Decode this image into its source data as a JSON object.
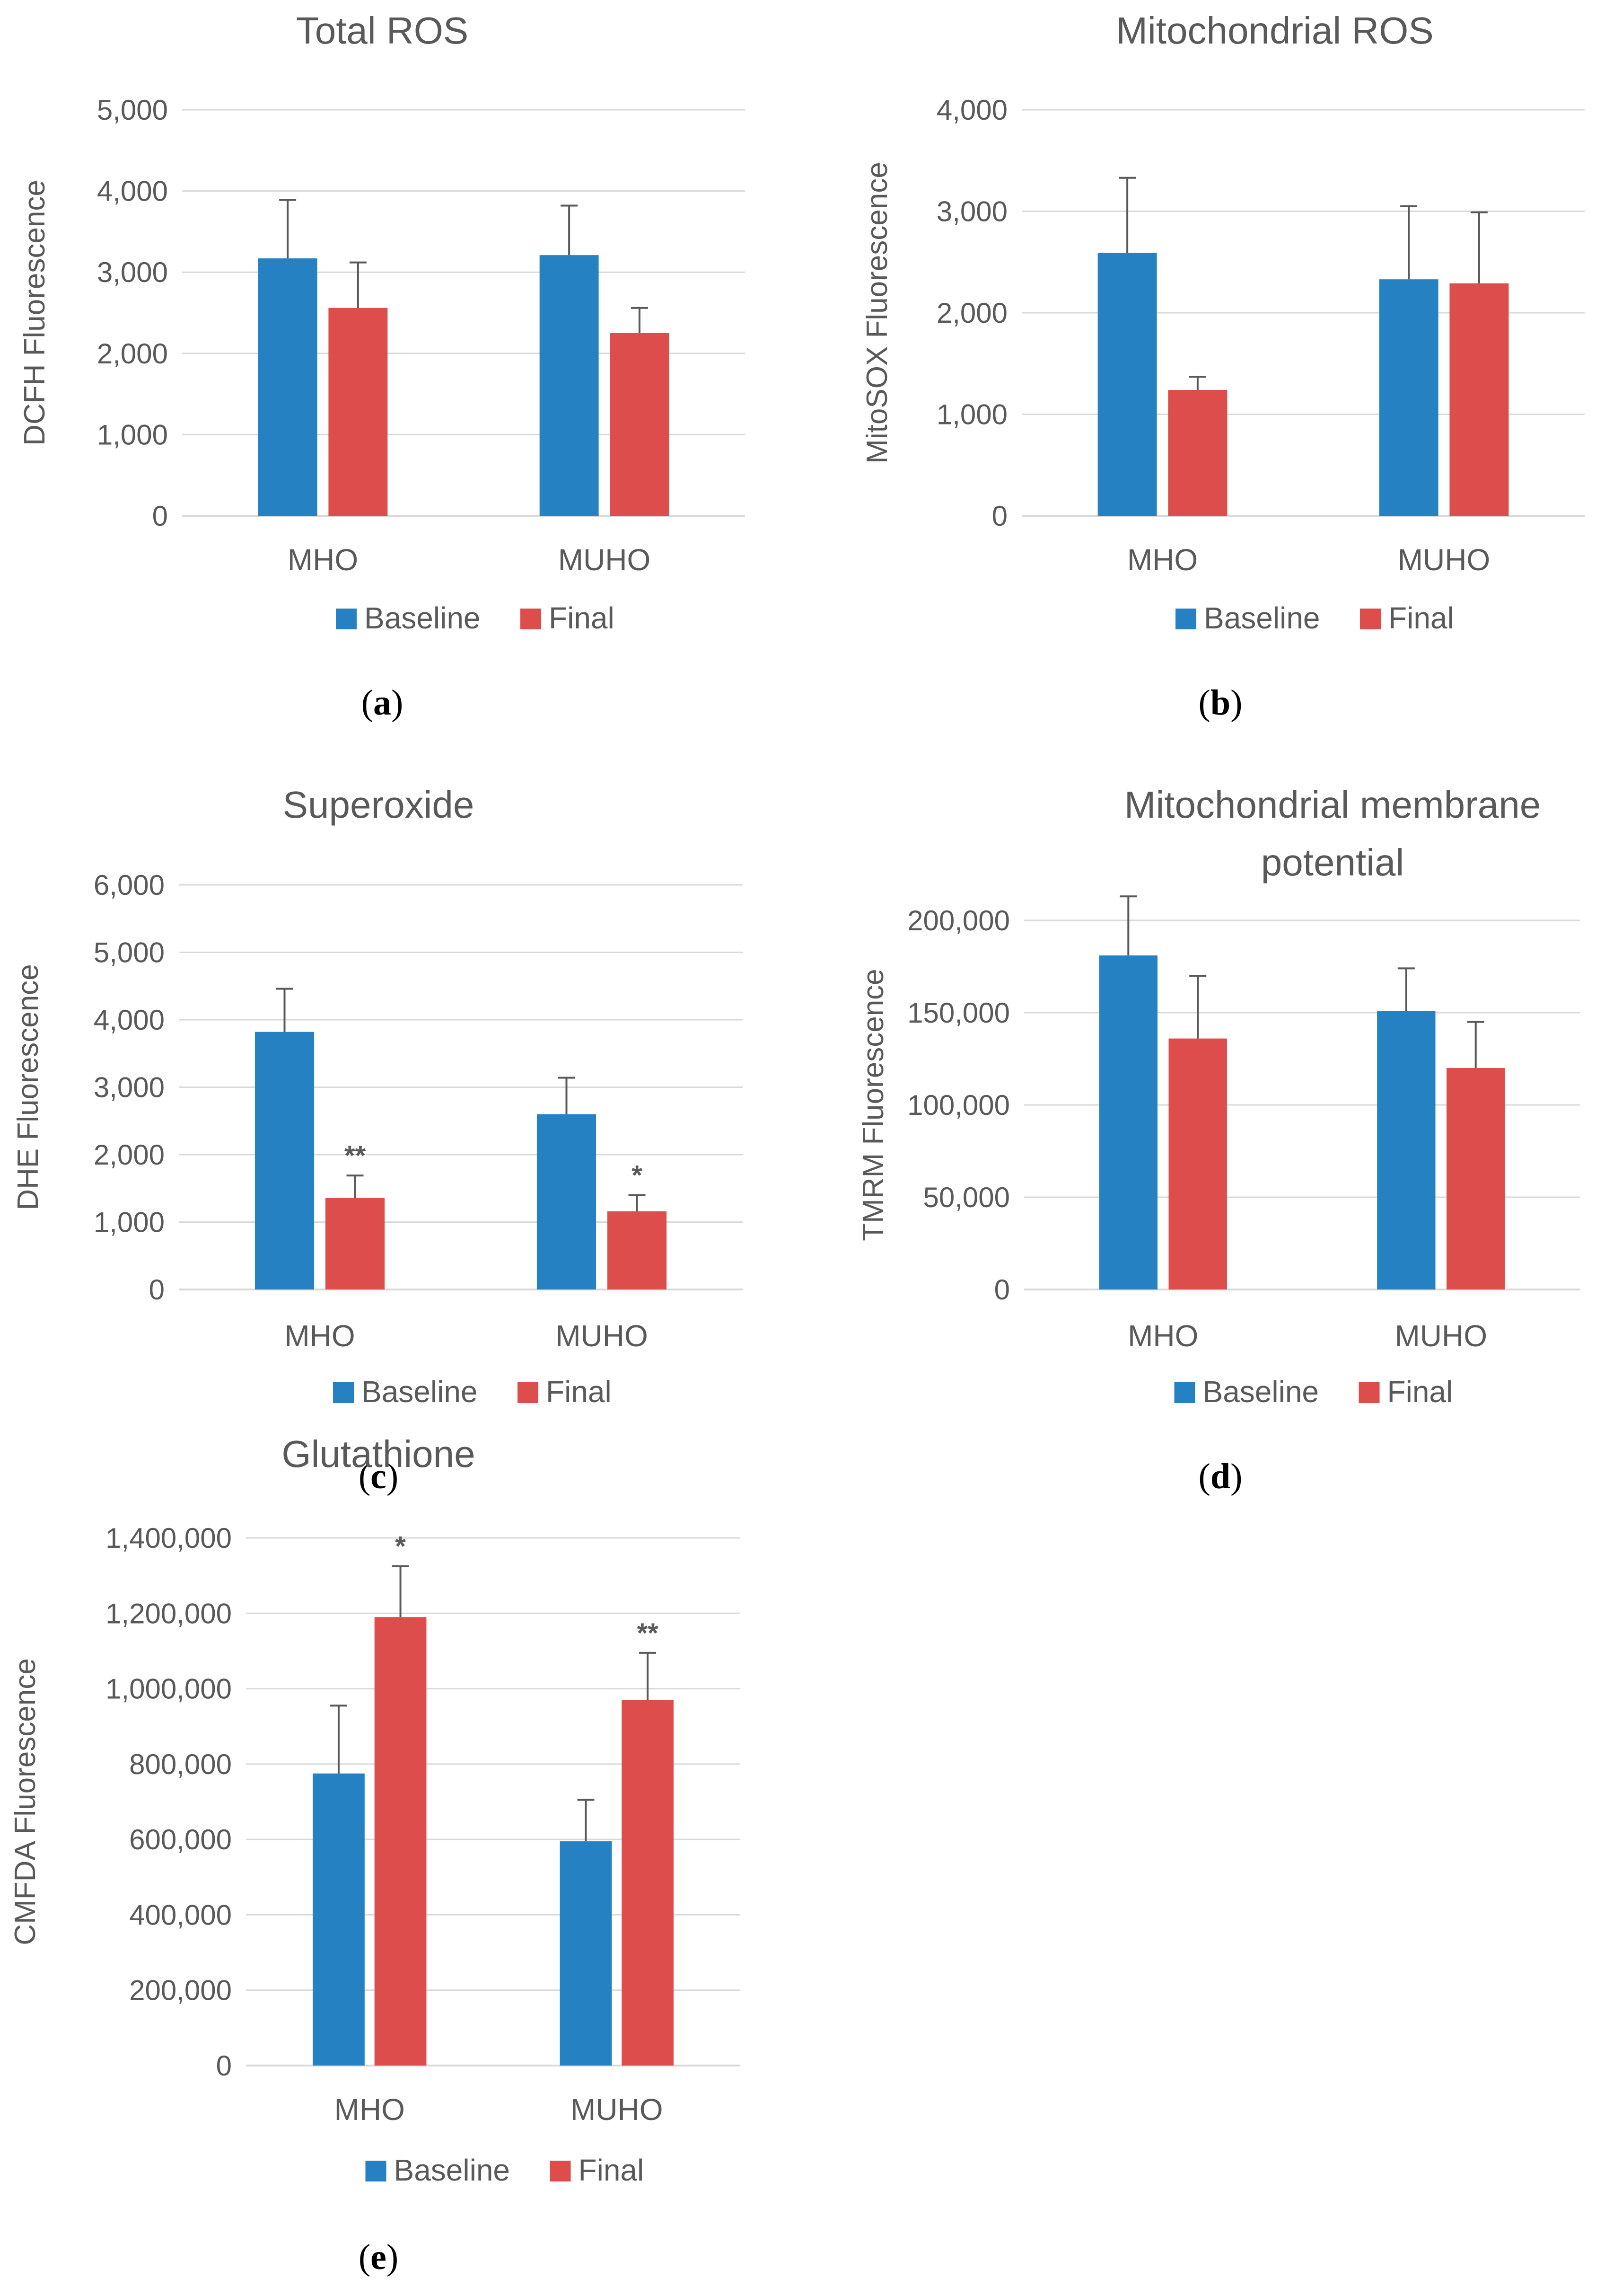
{
  "colors": {
    "baseline": "#2681c3",
    "final": "#dd4d4c"
  },
  "chart_data": [
    {
      "id": "a",
      "type": "bar",
      "title": [
        "Total ROS"
      ],
      "ylabel": "DCFH Fluorescence",
      "xlabel": "",
      "categories": [
        "MHO",
        "MUHO"
      ],
      "ylim": [
        0,
        5000
      ],
      "yticks": [
        0,
        1000,
        2000,
        3000,
        4000,
        5000
      ],
      "ytick_labels": [
        "0",
        "1,000",
        "2,000",
        "3,000",
        "4,000",
        "5,000"
      ],
      "series": [
        {
          "name": "Baseline",
          "values": [
            3170,
            3210
          ],
          "errors": [
            720,
            610
          ],
          "sig": [
            "",
            ""
          ]
        },
        {
          "name": "Final",
          "values": [
            2560,
            2250
          ],
          "errors": [
            560,
            310
          ],
          "sig": [
            "",
            ""
          ]
        }
      ],
      "legend": "bottom",
      "caption": "a"
    },
    {
      "id": "b",
      "type": "bar",
      "title": [
        "Mitochondrial ROS"
      ],
      "ylabel": "MitoSOX Fluorescence",
      "xlabel": "",
      "categories": [
        "MHO",
        "MUHO"
      ],
      "ylim": [
        0,
        4000
      ],
      "yticks": [
        0,
        1000,
        2000,
        3000,
        4000
      ],
      "ytick_labels": [
        "0",
        "1,000",
        "2,000",
        "3,000",
        "4,000"
      ],
      "series": [
        {
          "name": "Baseline",
          "values": [
            2590,
            2330
          ],
          "errors": [
            740,
            720
          ],
          "sig": [
            "",
            ""
          ]
        },
        {
          "name": "Final",
          "values": [
            1240,
            2290
          ],
          "errors": [
            130,
            700
          ],
          "sig": [
            "",
            ""
          ]
        }
      ],
      "legend": "bottom",
      "caption": "b"
    },
    {
      "id": "c",
      "type": "bar",
      "title": [
        "Superoxide"
      ],
      "ylabel": "DHE Fluorescence",
      "xlabel": "",
      "categories": [
        "MHO",
        "MUHO"
      ],
      "ylim": [
        0,
        6000
      ],
      "yticks": [
        0,
        1000,
        2000,
        3000,
        4000,
        5000,
        6000
      ],
      "ytick_labels": [
        "0",
        "1,000",
        "2,000",
        "3,000",
        "4,000",
        "5,000",
        "6,000"
      ],
      "series": [
        {
          "name": "Baseline",
          "values": [
            3820,
            2600
          ],
          "errors": [
            640,
            540
          ],
          "sig": [
            "",
            ""
          ]
        },
        {
          "name": "Final",
          "values": [
            1360,
            1160
          ],
          "errors": [
            330,
            240
          ],
          "sig": [
            "**",
            "*"
          ]
        }
      ],
      "legend": "bottom",
      "caption": "c"
    },
    {
      "id": "d",
      "type": "bar",
      "title": [
        "Mitochondrial membrane",
        "potential"
      ],
      "ylabel": "TMRM Fluorescence",
      "xlabel": "",
      "categories": [
        "MHO",
        "MUHO"
      ],
      "ylim": [
        0,
        200000
      ],
      "yticks": [
        0,
        50000,
        100000,
        150000,
        200000
      ],
      "ytick_labels": [
        "0",
        "50,000",
        "100,000",
        "150,000",
        "200,000"
      ],
      "series": [
        {
          "name": "Baseline",
          "values": [
            181000,
            151000
          ],
          "errors": [
            32000,
            23000
          ],
          "sig": [
            "",
            ""
          ]
        },
        {
          "name": "Final",
          "values": [
            136000,
            120000
          ],
          "errors": [
            34000,
            25000
          ],
          "sig": [
            "",
            ""
          ]
        }
      ],
      "legend": "bottom",
      "caption": "d"
    },
    {
      "id": "e",
      "type": "bar",
      "title": [
        "Glutathione"
      ],
      "ylabel": "CMFDA Fluorescence",
      "xlabel": "",
      "categories": [
        "MHO",
        "MUHO"
      ],
      "ylim": [
        0,
        1400000
      ],
      "yticks": [
        0,
        200000,
        400000,
        600000,
        800000,
        1000000,
        1200000,
        1400000
      ],
      "ytick_labels": [
        "0",
        "200,000",
        "400,000",
        "600,000",
        "800,000",
        "1,000,000",
        "1,200,000",
        "1,400,000"
      ],
      "series": [
        {
          "name": "Baseline",
          "values": [
            775000,
            595000
          ],
          "errors": [
            180000,
            110000
          ],
          "sig": [
            "",
            ""
          ]
        },
        {
          "name": "Final",
          "values": [
            1190000,
            970000
          ],
          "errors": [
            135000,
            125000
          ],
          "sig": [
            "*",
            "**"
          ]
        }
      ],
      "legend": "bottom",
      "caption": "e"
    }
  ]
}
